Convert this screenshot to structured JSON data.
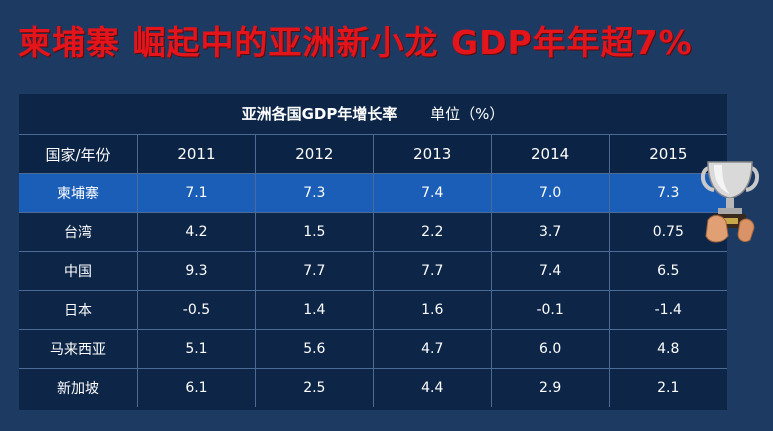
{
  "title": "柬埔寨 崛起中的亚洲新小龙  GDP年年超7%",
  "table": {
    "caption": "亚洲各国GDP年增长率",
    "unit": "单位（%）",
    "header_first": "国家/年份",
    "years": [
      "2011",
      "2012",
      "2013",
      "2014",
      "2015"
    ],
    "rows": [
      {
        "country": "柬埔寨",
        "values": [
          "7.1",
          "7.3",
          "7.4",
          "7.0",
          "7.3"
        ],
        "highlight": true
      },
      {
        "country": "台湾",
        "values": [
          "4.2",
          "1.5",
          "2.2",
          "3.7",
          "0.75"
        ]
      },
      {
        "country": "中国",
        "values": [
          "9.3",
          "7.7",
          "7.7",
          "7.4",
          "6.5"
        ]
      },
      {
        "country": "日本",
        "values": [
          "-0.5",
          "1.4",
          "1.6",
          "-0.1",
          "-1.4"
        ]
      },
      {
        "country": "马来西亚",
        "values": [
          "5.1",
          "5.6",
          "4.7",
          "6.0",
          "4.8"
        ]
      },
      {
        "country": "新加坡",
        "values": [
          "6.1",
          "2.5",
          "4.4",
          "2.9",
          "2.1"
        ]
      }
    ]
  },
  "colors": {
    "background": "#1d3a63",
    "title": "#e4141b",
    "highlight_row": "#1a5eb8"
  },
  "icons": {
    "trophy": "trophy-icon"
  }
}
